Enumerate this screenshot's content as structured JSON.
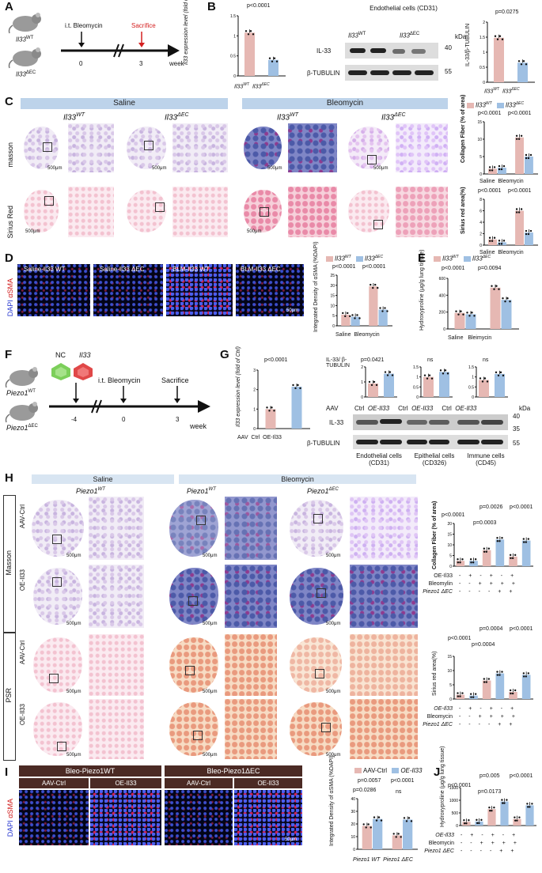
{
  "panels": {
    "A": "A",
    "B": "B",
    "C": "C",
    "D": "D",
    "E": "E",
    "F": "F",
    "G": "G",
    "H": "H",
    "I": "I",
    "J": "J"
  },
  "genotypes": {
    "il33_wt": "Il33",
    "il33_wt_sup": "WT",
    "il33_dec": "Il33",
    "il33_dec_sup": "ΔEC",
    "piezo_wt": "Piezo1",
    "piezo_wt_sup": "WT",
    "piezo_dec": "Piezo1",
    "piezo_dec_sup": "ΔEC"
  },
  "a": {
    "treatment": "i.t. Bleomycin",
    "sacrifice": "Sacrifice",
    "t0": "0",
    "t3": "3",
    "unit": "week"
  },
  "b": {
    "ylabel": "Il33 expression level (fold of Il-33WT)",
    "pval": "p<0.0001",
    "blot_title": "Endothelial cells (CD31)",
    "kda": "kDa",
    "il33_band": "IL-33",
    "tubulin_band": "β-TUBULIN",
    "kda40": "40",
    "kda55": "55",
    "quant_ylabel": "IL-33/β-TUBULIN",
    "quant_pval": "p=0.0275"
  },
  "c": {
    "saline": "Saline",
    "bleomycin": "Bleomycin",
    "row_masson": "masson",
    "row_sirius": "Sirius Red",
    "scale": "500μm",
    "chart1_ylabel": "Collagen Fiber (% of area)",
    "chart1_p1": "p<0.0001",
    "chart1_p2": "p<0.0001",
    "chart2_ylabel": "Sirius red area(%)",
    "chart2_p1": "p<0.0001",
    "chart2_p2": "p<0.0001"
  },
  "d": {
    "labels": [
      "Saline-Il33 WT",
      "Saline-Il33 ΔEC",
      "BLM-Il33 WT",
      "BLM-Il33 ΔEC"
    ],
    "stain": "αSMA",
    "dapi": "DAPI",
    "scale": "50μm",
    "chart_ylabel": "Integrated Density of αSMA (%DAPI)",
    "p1": "p<0.0001",
    "p2": "p<0.0001"
  },
  "e": {
    "ylabel": "Hydroxyproline (μg/g lung tissue)",
    "p1": "p<0.0001",
    "p2": "p=0.0094",
    "x1": "Saline",
    "x2": "Bleimycin"
  },
  "f": {
    "nc": "NC",
    "il33": "Il33",
    "treatment": "i.t. Bleomycin",
    "sacrifice": "Sacrifice",
    "tm4": "-4",
    "t0": "0",
    "t3": "3",
    "unit": "week"
  },
  "g": {
    "ylabel": "Il33 expression level (fold of Ctrl)",
    "pval": "p<0.0001",
    "aav": "AAV",
    "ctrl": "Ctrl",
    "oe": "OE-Il33",
    "quant_ylabel": "IL-33/ β-TUBULIN",
    "p_endo": "p=0.0421",
    "p_epi": "ns",
    "p_imm": "ns",
    "il33_band": "IL-33",
    "tubulin_band": "β-TUBULIN",
    "kda": "kDa",
    "kda40": "40",
    "kda35": "35",
    "kda55": "55",
    "cells": [
      "Endothelial cells (CD31)",
      "Epithelial cells (CD326)",
      "Immune cells (CD45)"
    ]
  },
  "h": {
    "saline": "Saline",
    "bleomycin": "Bleomycin",
    "row_masson": "Masson",
    "row_psr": "PSR",
    "aav_ctrl": "AAV-Ctrl",
    "oe_il33": "OE-Il33",
    "scale": "500μm",
    "chart1_ylabel": "Collagen Fiber (% of area)",
    "chart2_ylabel": "Sirius red area(%)",
    "c1_p": [
      "p<0.0001",
      "p=0.0003",
      "p=0.0026",
      "p<0.0001"
    ],
    "c2_p": [
      "p<0.0001",
      "p=0.0004",
      "p=0.0004",
      "p<0.0001"
    ],
    "row_oe": "OE-Il33",
    "row_bleo": "Bleomylin",
    "row_bleo2": "Bleomycin",
    "row_piezo": "Piezo1 ΔEC"
  },
  "i": {
    "bleo_wt": "Bleo-Piezo1WT",
    "bleo_dec": "Bleo-Piezo1ΔEC",
    "aav_ctrl": "AAV-Ctrl",
    "oe_il33": "OE-Il33",
    "stain": "αSMA",
    "dapi": "DAPI",
    "scale": "50μm",
    "chart_ylabel": "Integrated Density of αSMA (%DAPI)",
    "legend_ctrl": "AAV-Ctrl",
    "legend_oe": "OE-Il33",
    "p": [
      "p=0.0286",
      "p=0.0057",
      "p<0.0001",
      "ns"
    ],
    "x1": "Piezo1 WT",
    "x2": "Piezo1 ΔEC"
  },
  "j": {
    "ylabel": "Hydroxyproline (μg/g lung tissue)",
    "p": [
      "p<0.0001",
      "p=0.0173",
      "p=0.005",
      "p<0.0001"
    ],
    "row_oe": "OE-Il33",
    "row_bleo": "Bleomycin",
    "row_piezo": "Piezo1 ΔEC"
  },
  "colors": {
    "wt": "#e6b8b3",
    "dec": "#9fc0e3",
    "ctrl": "#e6b8b3",
    "oe": "#9fc0e3",
    "header": "#bdd3ea"
  },
  "chart_data": [
    {
      "type": "bar",
      "id": "B1",
      "categories": [
        "Il33 WT",
        "Il33 ΔEC"
      ],
      "values": [
        1.08,
        0.4
      ],
      "ylim": [
        0,
        1.5
      ]
    },
    {
      "type": "bar",
      "id": "B2",
      "categories": [
        "Il33 WT",
        "Il33 ΔEC"
      ],
      "values": [
        1.48,
        0.65
      ],
      "ylim": [
        0,
        2.0
      ]
    },
    {
      "type": "bar",
      "id": "C1",
      "categories": [
        "Saline",
        "Bleomycin"
      ],
      "series": [
        {
          "name": "Il33 WT",
          "values": [
            1.5,
            10.5
          ]
        },
        {
          "name": "Il33 ΔEC",
          "values": [
            1.8,
            5.0
          ]
        }
      ],
      "ylim": [
        0,
        15
      ]
    },
    {
      "type": "bar",
      "id": "C2",
      "categories": [
        "Saline",
        "Bleomycin"
      ],
      "series": [
        {
          "name": "Il33 WT",
          "values": [
            1.0,
            6.0
          ]
        },
        {
          "name": "Il33 ΔEC",
          "values": [
            0.5,
            2.2
          ]
        }
      ],
      "ylim": [
        0,
        8
      ]
    },
    {
      "type": "bar",
      "id": "D",
      "categories": [
        "Saline",
        "Bleomycin"
      ],
      "series": [
        {
          "name": "Il33 WT",
          "values": [
            5.5,
            19.5
          ]
        },
        {
          "name": "Il33 ΔEC",
          "values": [
            4.5,
            8.0
          ]
        }
      ],
      "ylim": [
        0,
        25
      ]
    },
    {
      "type": "bar",
      "id": "E",
      "categories": [
        "Saline",
        "Bleimycin"
      ],
      "series": [
        {
          "name": "Il33 WT",
          "values": [
            190,
            490
          ]
        },
        {
          "name": "Il33 ΔEC",
          "values": [
            175,
            345
          ]
        }
      ],
      "ylim": [
        0,
        600
      ]
    },
    {
      "type": "bar",
      "id": "G1",
      "categories": [
        "Ctrl",
        "OE-Il33"
      ],
      "values": [
        1.0,
        2.15
      ],
      "ylim": [
        0,
        3
      ]
    },
    {
      "type": "bar",
      "id": "H1",
      "categories": [
        "1",
        "2",
        "3",
        "4",
        "5",
        "6"
      ],
      "values": [
        2.5,
        2.5,
        7.5,
        12.5,
        4.5,
        12.0
      ],
      "ylim": [
        0,
        20
      ]
    },
    {
      "type": "bar",
      "id": "H2",
      "categories": [
        "1",
        "2",
        "3",
        "4",
        "5",
        "6"
      ],
      "values": [
        1.5,
        1.2,
        6.5,
        9.0,
        2.5,
        8.5
      ],
      "ylim": [
        0,
        15
      ]
    },
    {
      "type": "bar",
      "id": "I",
      "categories": [
        "Piezo1 WT",
        "Piezo1 ΔEC"
      ],
      "series": [
        {
          "name": "AAV-Ctrl",
          "values": [
            18.5,
            11.0
          ]
        },
        {
          "name": "OE-Il33",
          "values": [
            24.0,
            23.5
          ]
        }
      ],
      "ylim": [
        0,
        40
      ]
    },
    {
      "type": "bar",
      "id": "J",
      "categories": [
        "1",
        "2",
        "3",
        "4",
        "5",
        "6"
      ],
      "values": [
        150,
        160,
        650,
        950,
        260,
        800
      ],
      "ylim": [
        0,
        1500
      ]
    }
  ]
}
